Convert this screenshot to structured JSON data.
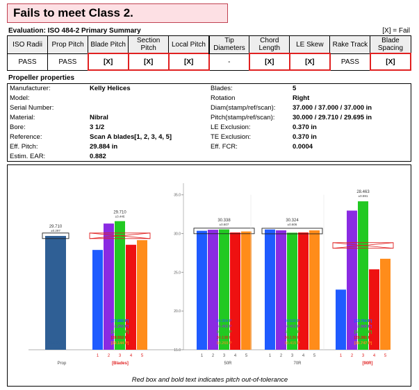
{
  "banner": {
    "title": "Fails to meet Class 2."
  },
  "evaluation": {
    "title": "Evaluation: ISO 484-2 Primary Summary",
    "legend": "[X] = Fail"
  },
  "summary": {
    "columns": [
      {
        "label": "ISO Radii",
        "value": "PASS",
        "fail": false
      },
      {
        "label": "Prop Pitch",
        "value": "PASS",
        "fail": false
      },
      {
        "label": "Blade Pitch",
        "value": "[X]",
        "fail": true
      },
      {
        "label": "Section Pitch",
        "value": "[X]",
        "fail": true
      },
      {
        "label": "Local Pitch",
        "value": "[X]",
        "fail": true
      },
      {
        "label": "Tip Diameters",
        "value": "-",
        "fail": false
      },
      {
        "label": "Chord Length",
        "value": "[X]",
        "fail": true
      },
      {
        "label": "LE Skew",
        "value": "[X]",
        "fail": true
      },
      {
        "label": "Rake Track",
        "value": "PASS",
        "fail": false
      },
      {
        "label": "Blade Spacing",
        "value": "[X]",
        "fail": true
      }
    ]
  },
  "properties": {
    "title": "Propeller properties",
    "left": [
      {
        "label": "Manufacturer:",
        "value": "Kelly Helices"
      },
      {
        "label": "Model:",
        "value": ""
      },
      {
        "label": "Serial Number:",
        "value": ""
      },
      {
        "label": "Material:",
        "value": "Nibral"
      },
      {
        "label": "Bore:",
        "value": "3 1/2"
      },
      {
        "label": "Reference:",
        "value": "Scan A blades[1, 2, 3, 4, 5]"
      },
      {
        "label": "Eff. Pitch:",
        "value": "29.884 in"
      },
      {
        "label": "Estim. EAR:",
        "value": "0.882"
      }
    ],
    "right": [
      {
        "label": "Blades:",
        "value": "5"
      },
      {
        "label": "Rotation",
        "value": "Right"
      },
      {
        "label": "Diam(stamp/ref/scan):",
        "value": "37.000 / 37.000 / 37.000 in"
      },
      {
        "label": "Pitch(stamp/ref/scan):",
        "value": "30.000 / 29.710 / 29.695 in"
      },
      {
        "label": "LE Exclusion:",
        "value": "0.370 in"
      },
      {
        "label": "TE Exclusion:",
        "value": "0.370 in"
      },
      {
        "label": "Eff. FCR:",
        "value": "0.0004"
      }
    ]
  },
  "footnote": "Red box and bold text indicates pitch out-of-tolerance",
  "colors": {
    "blades": [
      "#1f5bff",
      "#8a2be2",
      "#22c922",
      "#ee1111",
      "#ff8c1a"
    ],
    "prop": "#2f5f95",
    "fail": "#e02020"
  },
  "chart_data": {
    "type": "bar",
    "title": "",
    "ylim": [
      15.0,
      36.5
    ],
    "yticks": [
      "15.0",
      "20.0",
      "25.0",
      "30.0",
      "35.0"
    ],
    "groups": [
      {
        "name": "Prop",
        "categories": [
          ""
        ],
        "values": [
          29.695
        ],
        "labels": [
          "29.695 P"
        ],
        "fail": false,
        "tol": {
          "value": 29.71,
          "pm": "±0.297",
          "fail": false
        }
      },
      {
        "name": "[Blades]",
        "categories": [
          "1",
          "2",
          "3",
          "4",
          "5"
        ],
        "values": [
          27.885,
          31.292,
          31.604,
          28.552,
          29.144
        ],
        "labels": [
          "[27.885 P]",
          "[31.292 P]",
          "[31.604 P]",
          "[28.552 P]",
          "[29.144 P]"
        ],
        "fail": true,
        "tol": {
          "value": 29.71,
          "pm": "±0.446",
          "fail": true
        }
      },
      {
        "name": "50R",
        "categories": [
          "1",
          "2",
          "3",
          "4",
          "5"
        ],
        "values": [
          30.354,
          30.493,
          30.538,
          30.138,
          30.269
        ],
        "labels": [
          "30.354 P",
          "30.493 P",
          "30.538 P",
          "30.138 P",
          "30.269 P"
        ],
        "fail": false,
        "tol": {
          "value": 30.338,
          "pm": "±0.607",
          "fail": false
        }
      },
      {
        "name": "70R",
        "categories": [
          "1",
          "2",
          "3",
          "4",
          "5"
        ],
        "values": [
          30.525,
          30.419,
          30.112,
          30.139,
          30.415
        ],
        "labels": [
          "30.525 P",
          "30.419 P",
          "30.112 P",
          "30.139 P",
          "30.415 P"
        ],
        "fail": false,
        "tol": {
          "value": 30.324,
          "pm": "±0.606",
          "fail": false
        }
      },
      {
        "name": "[90R]",
        "categories": [
          "1",
          "2",
          "3",
          "4",
          "5"
        ],
        "values": [
          22.764,
          32.965,
          34.162,
          25.381,
          26.747
        ],
        "labels": [
          "[22.764 P]",
          "[32.965 P]",
          "[34.162 P]",
          "[25.381 P]",
          "[26.747 P]"
        ],
        "fail": true,
        "tol": {
          "value": 28.463,
          "pm": "±0.591",
          "fail": true
        }
      }
    ]
  }
}
